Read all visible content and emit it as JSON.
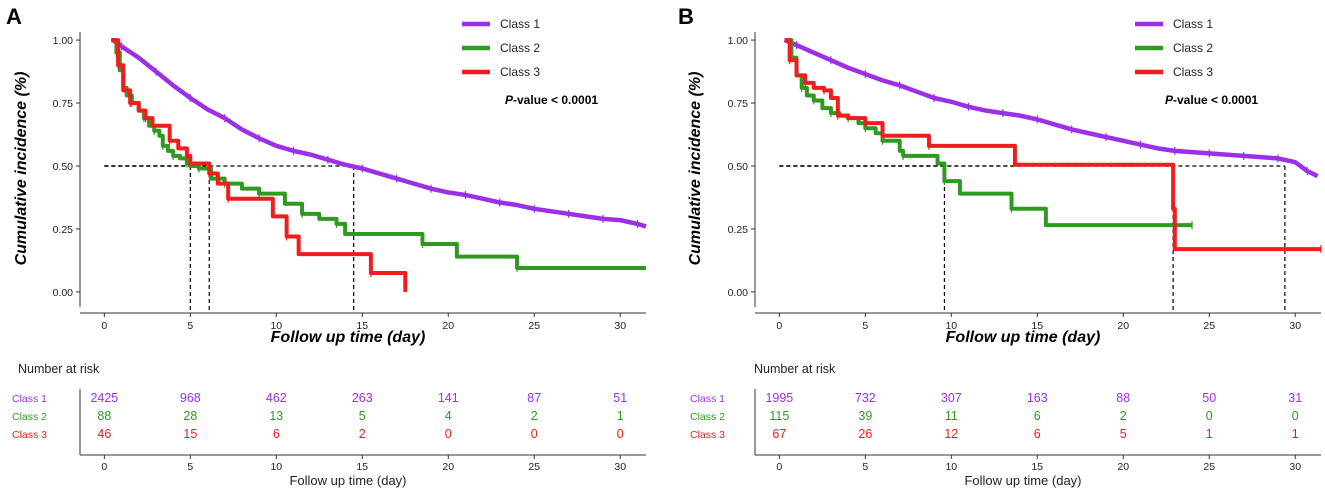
{
  "colors": {
    "class1": "#9b30e8",
    "class2": "#2e9a22",
    "class3": "#ef1d1d",
    "axis": "#333333",
    "ref": "#000000"
  },
  "chart_data": [
    {
      "type": "line",
      "panel": "A",
      "xlabel": "Follow up time (day)",
      "ylabel": "Cumulative incidence (%)",
      "xlim": [
        -1.3,
        31.5
      ],
      "ylim": [
        -0.06,
        1.04
      ],
      "xticks": [
        0,
        5,
        10,
        15,
        20,
        25,
        30
      ],
      "xtick_labels": [
        "0",
        "5",
        "10",
        "15",
        "20",
        "25",
        "30"
      ],
      "yticks": [
        0,
        0.25,
        0.5,
        0.75,
        1.0
      ],
      "ytick_labels": [
        "0.00",
        "0.25",
        "0.50",
        "0.75",
        "1.00"
      ],
      "pvalue_prefix": "P",
      "pvalue_suffix": "-value < 0.0001",
      "legend": [
        "Class 1",
        "Class 2",
        "Class 3"
      ],
      "median_lines": [
        {
          "x": 5.0,
          "y": 0.5
        },
        {
          "x": 6.1,
          "y": 0.5
        },
        {
          "x": 14.5,
          "y": 0.5
        }
      ],
      "series": [
        {
          "name": "Class 1",
          "color_key": "class1",
          "step": false,
          "points": [
            [
              0.5,
              1.0
            ],
            [
              1,
              0.975
            ],
            [
              2,
              0.93
            ],
            [
              3,
              0.875
            ],
            [
              4,
              0.82
            ],
            [
              5,
              0.77
            ],
            [
              6,
              0.725
            ],
            [
              7,
              0.69
            ],
            [
              8,
              0.645
            ],
            [
              9,
              0.61
            ],
            [
              10,
              0.58
            ],
            [
              11,
              0.56
            ],
            [
              12,
              0.545
            ],
            [
              13,
              0.525
            ],
            [
              14,
              0.505
            ],
            [
              15,
              0.49
            ],
            [
              16,
              0.47
            ],
            [
              17,
              0.45
            ],
            [
              18,
              0.43
            ],
            [
              19,
              0.41
            ],
            [
              20,
              0.395
            ],
            [
              21,
              0.385
            ],
            [
              22,
              0.37
            ],
            [
              23,
              0.355
            ],
            [
              24,
              0.345
            ],
            [
              25,
              0.33
            ],
            [
              26,
              0.32
            ],
            [
              27,
              0.31
            ],
            [
              28,
              0.3
            ],
            [
              29,
              0.29
            ],
            [
              30,
              0.285
            ],
            [
              31,
              0.27
            ],
            [
              31.5,
              0.26
            ]
          ]
        },
        {
          "name": "Class 2",
          "color_key": "class2",
          "step": true,
          "points": [
            [
              0.4,
              1.0
            ],
            [
              0.7,
              0.95
            ],
            [
              0.9,
              0.88
            ],
            [
              1.1,
              0.81
            ],
            [
              1.3,
              0.78
            ],
            [
              1.6,
              0.75
            ],
            [
              2,
              0.72
            ],
            [
              2.3,
              0.69
            ],
            [
              2.6,
              0.66
            ],
            [
              2.9,
              0.64
            ],
            [
              3.2,
              0.62
            ],
            [
              3.4,
              0.58
            ],
            [
              3.7,
              0.56
            ],
            [
              4.0,
              0.54
            ],
            [
              4.4,
              0.53
            ],
            [
              4.8,
              0.51
            ],
            [
              5.0,
              0.5
            ],
            [
              5.5,
              0.49
            ],
            [
              6.2,
              0.45
            ],
            [
              7.0,
              0.43
            ],
            [
              8.0,
              0.41
            ],
            [
              9.0,
              0.39
            ],
            [
              10.5,
              0.35
            ],
            [
              11.5,
              0.31
            ],
            [
              12.5,
              0.29
            ],
            [
              13.5,
              0.27
            ],
            [
              14,
              0.23
            ],
            [
              18.5,
              0.19
            ],
            [
              20.5,
              0.14
            ],
            [
              24,
              0.095
            ],
            [
              31.5,
              0.095
            ]
          ]
        },
        {
          "name": "Class 3",
          "color_key": "class3",
          "step": true,
          "points": [
            [
              0.4,
              1.0
            ],
            [
              0.8,
              0.9
            ],
            [
              1.1,
              0.8
            ],
            [
              1.5,
              0.75
            ],
            [
              2,
              0.72
            ],
            [
              2.4,
              0.69
            ],
            [
              2.8,
              0.66
            ],
            [
              3.8,
              0.6
            ],
            [
              4.3,
              0.57
            ],
            [
              4.8,
              0.54
            ],
            [
              5.0,
              0.51
            ],
            [
              6.1,
              0.47
            ],
            [
              6.6,
              0.43
            ],
            [
              7.2,
              0.37
            ],
            [
              9.8,
              0.3
            ],
            [
              10.6,
              0.22
            ],
            [
              11.3,
              0.15
            ],
            [
              15.5,
              0.075
            ],
            [
              17.5,
              0.0
            ]
          ]
        }
      ],
      "risk_table": {
        "title": "Number at risk",
        "xlabel": "Follow up time (day)",
        "rows": [
          {
            "name": "Class 1",
            "color_key": "class1",
            "values": [
              "2425",
              "968",
              "462",
              "263",
              "141",
              "87",
              "51"
            ]
          },
          {
            "name": "Class 2",
            "color_key": "class2",
            "values": [
              "88",
              "28",
              "13",
              "5",
              "4",
              "2",
              "1"
            ]
          },
          {
            "name": "Class 3",
            "color_key": "class3",
            "values": [
              "46",
              "15",
              "6",
              "2",
              "0",
              "0",
              "0"
            ]
          }
        ]
      }
    },
    {
      "type": "line",
      "panel": "B",
      "xlabel": "Follow up time (day)",
      "ylabel": "Cumulative incidence (%)",
      "xlim": [
        -1.3,
        31.5
      ],
      "ylim": [
        -0.06,
        1.04
      ],
      "xticks": [
        0,
        5,
        10,
        15,
        20,
        25,
        30
      ],
      "xtick_labels": [
        "0",
        "5",
        "10",
        "15",
        "20",
        "25",
        "30"
      ],
      "yticks": [
        0,
        0.25,
        0.5,
        0.75,
        1.0
      ],
      "ytick_labels": [
        "0.00",
        "0.25",
        "0.50",
        "0.75",
        "1.00"
      ],
      "pvalue_prefix": "P",
      "pvalue_suffix": "-value < 0.0001",
      "legend": [
        "Class 1",
        "Class 2",
        "Class 3"
      ],
      "median_lines": [
        {
          "x": 9.6,
          "y": 0.5
        },
        {
          "x": 22.9,
          "y": 0.5
        },
        {
          "x": 29.4,
          "y": 0.5
        }
      ],
      "series": [
        {
          "name": "Class 1",
          "color_key": "class1",
          "step": false,
          "points": [
            [
              0.3,
              1.0
            ],
            [
              1,
              0.98
            ],
            [
              2,
              0.95
            ],
            [
              3,
              0.92
            ],
            [
              4,
              0.89
            ],
            [
              5,
              0.865
            ],
            [
              6,
              0.84
            ],
            [
              7,
              0.82
            ],
            [
              8,
              0.795
            ],
            [
              9,
              0.77
            ],
            [
              10,
              0.755
            ],
            [
              11,
              0.735
            ],
            [
              12,
              0.72
            ],
            [
              13,
              0.71
            ],
            [
              14,
              0.7
            ],
            [
              15,
              0.685
            ],
            [
              16,
              0.665
            ],
            [
              17,
              0.645
            ],
            [
              18,
              0.63
            ],
            [
              19,
              0.615
            ],
            [
              20,
              0.6
            ],
            [
              21,
              0.585
            ],
            [
              22,
              0.57
            ],
            [
              23,
              0.56
            ],
            [
              24,
              0.555
            ],
            [
              25,
              0.55
            ],
            [
              26,
              0.545
            ],
            [
              27,
              0.54
            ],
            [
              28,
              0.535
            ],
            [
              29,
              0.53
            ],
            [
              30,
              0.515
            ],
            [
              30.7,
              0.48
            ],
            [
              31.3,
              0.46
            ]
          ]
        },
        {
          "name": "Class 2",
          "color_key": "class2",
          "step": true,
          "points": [
            [
              0.3,
              1.0
            ],
            [
              0.7,
              0.93
            ],
            [
              1,
              0.86
            ],
            [
              1.3,
              0.81
            ],
            [
              1.6,
              0.78
            ],
            [
              2,
              0.76
            ],
            [
              2.5,
              0.73
            ],
            [
              3,
              0.71
            ],
            [
              3.5,
              0.7
            ],
            [
              4,
              0.69
            ],
            [
              4.6,
              0.67
            ],
            [
              5,
              0.65
            ],
            [
              5.6,
              0.63
            ],
            [
              6,
              0.6
            ],
            [
              7,
              0.56
            ],
            [
              7.2,
              0.54
            ],
            [
              9.2,
              0.51
            ],
            [
              9.6,
              0.44
            ],
            [
              10.5,
              0.39
            ],
            [
              13.5,
              0.33
            ],
            [
              15.5,
              0.265
            ],
            [
              24,
              0.265
            ]
          ]
        },
        {
          "name": "Class 3",
          "color_key": "class3",
          "step": true,
          "points": [
            [
              0.3,
              1.0
            ],
            [
              0.6,
              0.92
            ],
            [
              1,
              0.86
            ],
            [
              1.5,
              0.83
            ],
            [
              2,
              0.81
            ],
            [
              2.6,
              0.8
            ],
            [
              3,
              0.77
            ],
            [
              3.4,
              0.7
            ],
            [
              4,
              0.69
            ],
            [
              5,
              0.67
            ],
            [
              6,
              0.62
            ],
            [
              8.7,
              0.58
            ],
            [
              13.7,
              0.505
            ],
            [
              22.9,
              0.33
            ],
            [
              23.0,
              0.17
            ],
            [
              31.5,
              0.17
            ]
          ]
        }
      ],
      "risk_table": {
        "title": "Number at risk",
        "xlabel": "Follow up time (day)",
        "rows": [
          {
            "name": "Class 1",
            "color_key": "class1",
            "values": [
              "1995",
              "732",
              "307",
              "163",
              "88",
              "50",
              "31"
            ]
          },
          {
            "name": "Class 2",
            "color_key": "class2",
            "values": [
              "115",
              "39",
              "11",
              "6",
              "2",
              "0",
              "0"
            ]
          },
          {
            "name": "Class 3",
            "color_key": "class3",
            "values": [
              "67",
              "26",
              "12",
              "6",
              "5",
              "1",
              "1"
            ]
          }
        ]
      }
    }
  ]
}
